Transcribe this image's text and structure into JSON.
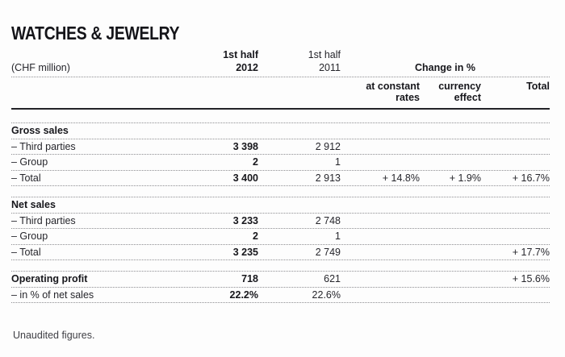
{
  "page": {
    "title": "WATCHES & JEWELRY",
    "footnote": "Unaudited figures."
  },
  "table": {
    "unit_label": "(CHF million)",
    "headers": {
      "col_2012": {
        "line1": "1st half",
        "line2": "2012"
      },
      "col_2011": {
        "line1": "1st half",
        "line2": "2011"
      },
      "change_group": "Change in %",
      "sub_constant": {
        "line1": "at constant",
        "line2": "rates"
      },
      "sub_currency": {
        "line1": "currency",
        "line2": "effect"
      },
      "sub_total": "Total"
    },
    "rows": [
      {
        "label": "Gross sales"
      },
      {
        "label": "– Third parties",
        "v2012": "3 398",
        "v2011": "2 912"
      },
      {
        "label": "– Group",
        "v2012": "2",
        "v2011": "1"
      },
      {
        "label": "– Total",
        "v2012": "3 400",
        "v2011": "2 913",
        "at_constant_rates": "+ 14.8%",
        "currency_effect": "+ 1.9%",
        "total": "+ 16.7%"
      },
      {
        "gap": true
      },
      {
        "label": "Net sales"
      },
      {
        "label": "– Third parties",
        "v2012": "3 233",
        "v2011": "2 748"
      },
      {
        "label": "– Group",
        "v2012": "2",
        "v2011": "1"
      },
      {
        "label": "– Total",
        "v2012": "3 235",
        "v2011": "2 749",
        "total": "+ 17.7%"
      },
      {
        "gap": true
      },
      {
        "label": "Operating profit",
        "v2012": "718",
        "v2011": "621",
        "total": "+ 15.6%"
      },
      {
        "label": "– in % of net sales",
        "v2012": "22.2%",
        "v2011": "22.6%"
      }
    ]
  }
}
